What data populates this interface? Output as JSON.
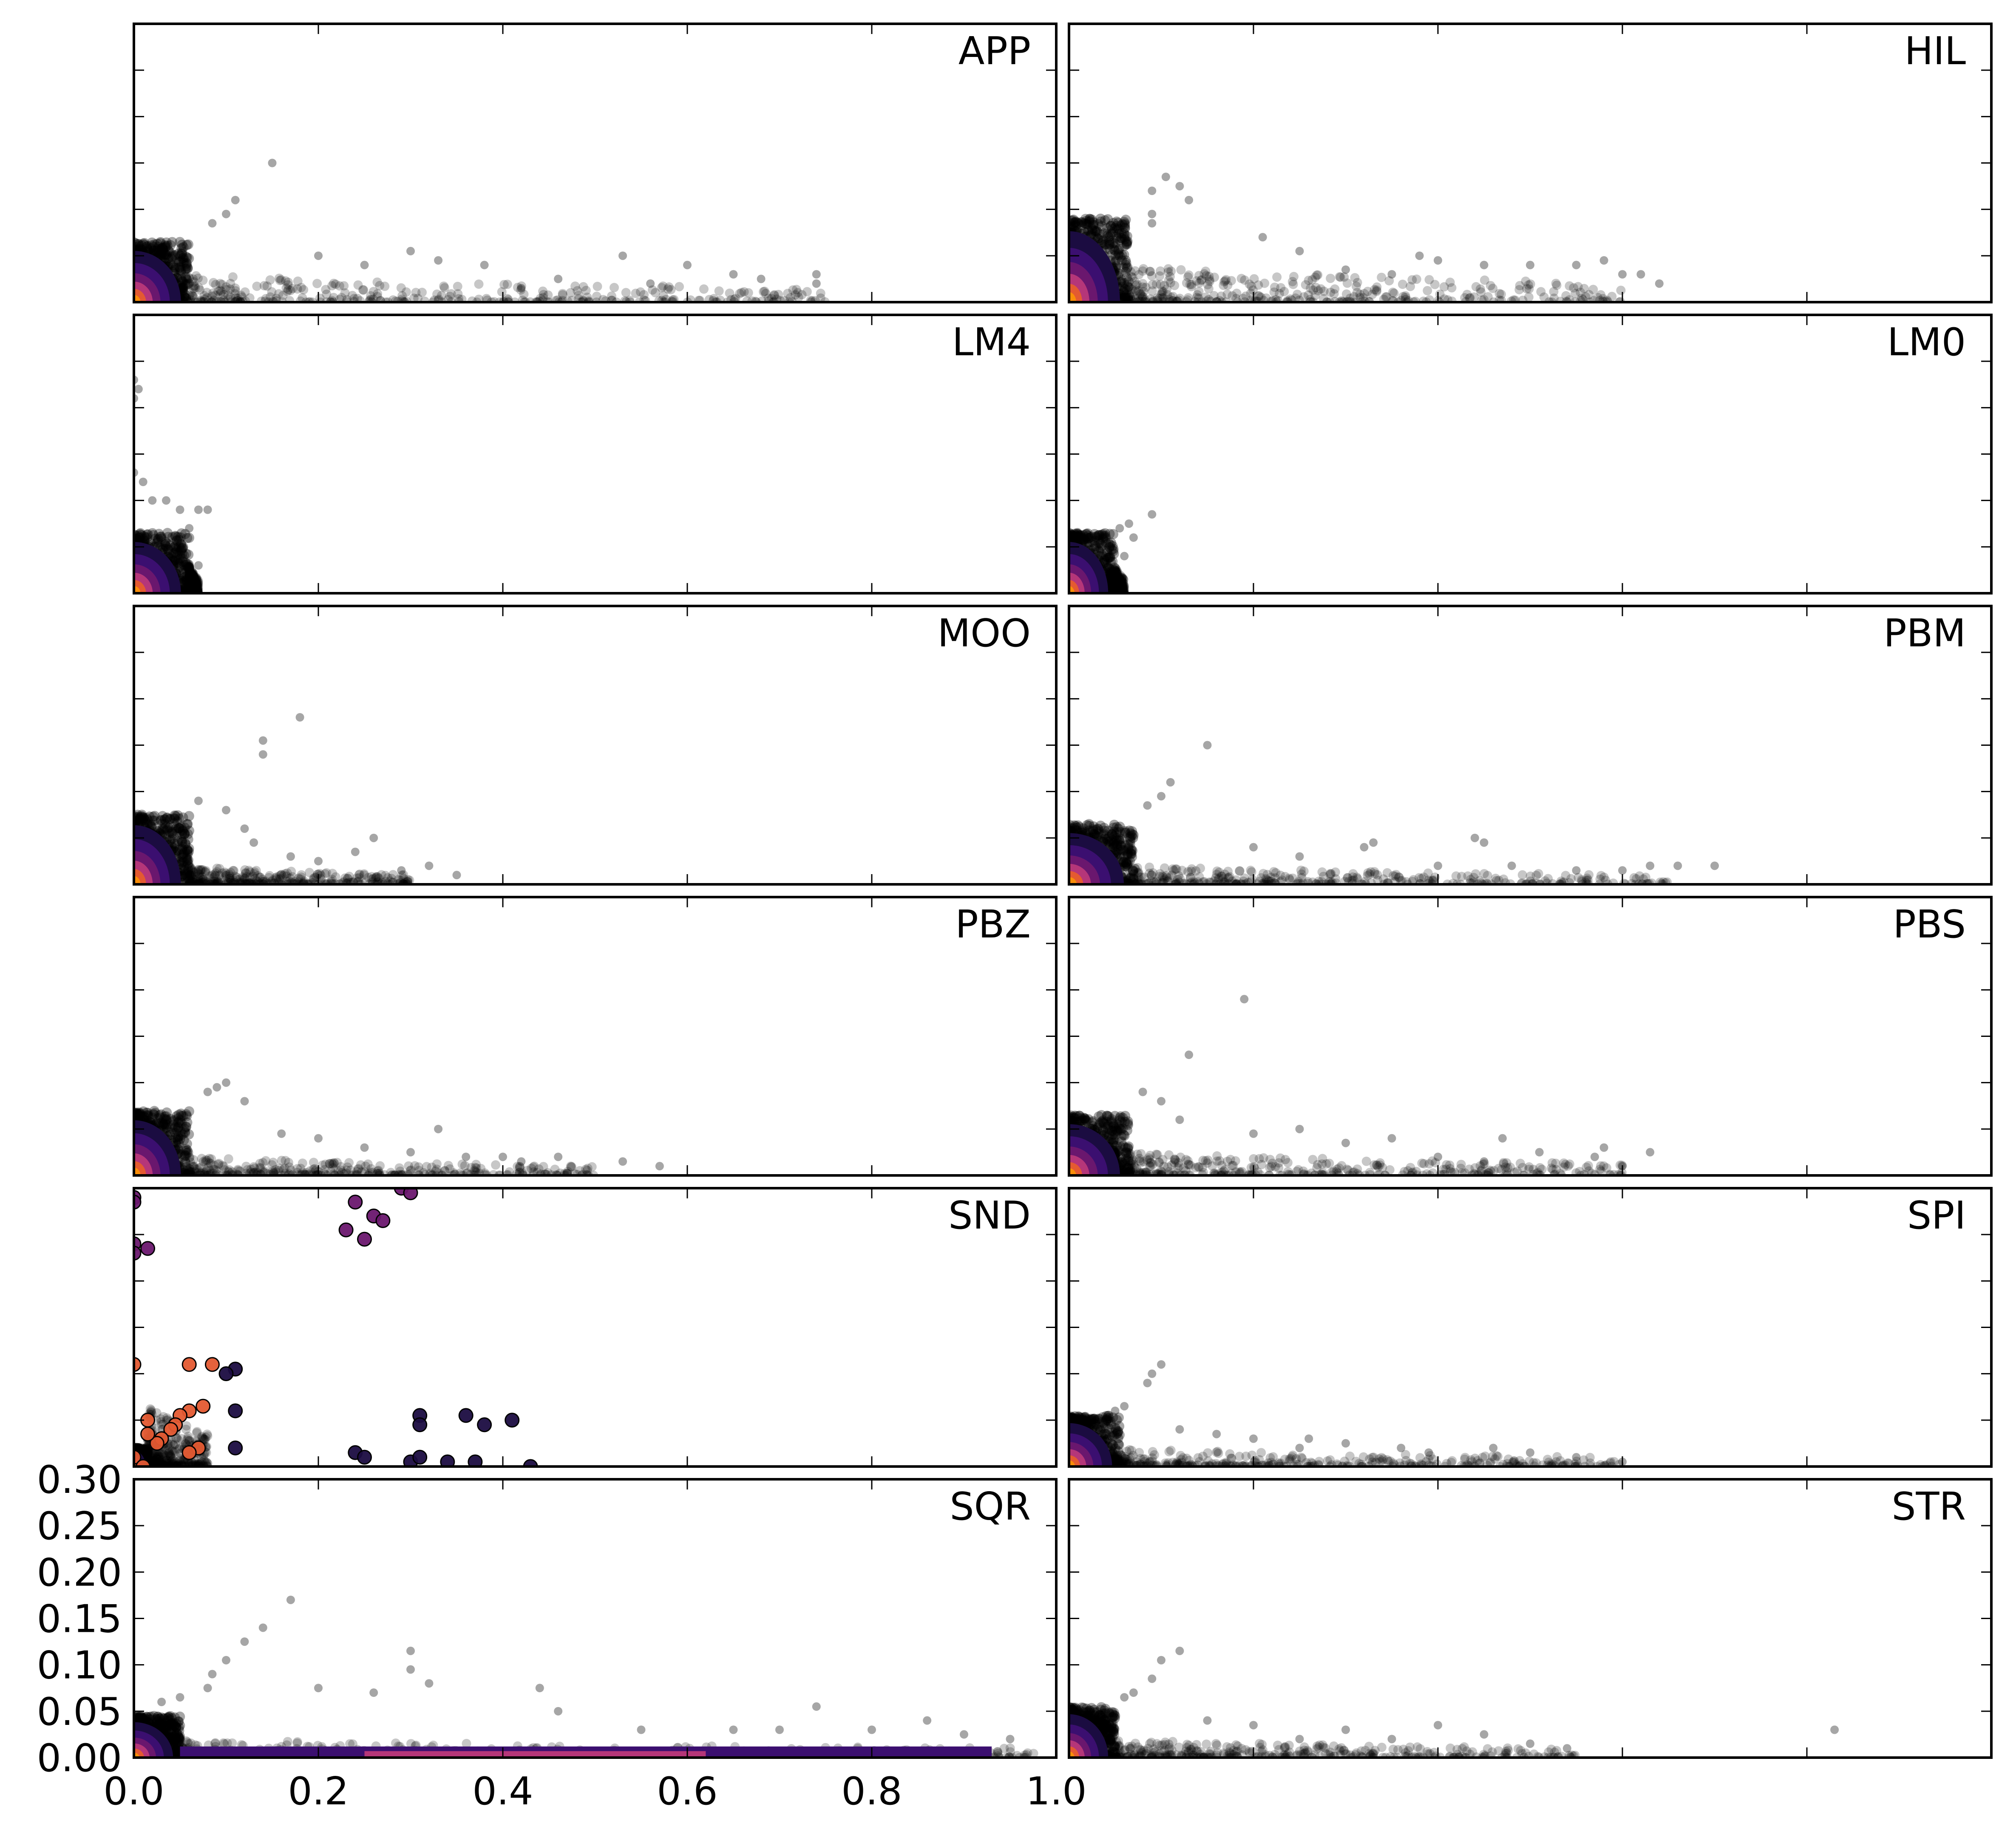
{
  "chart_data": {
    "type": "scatter",
    "layout": {
      "rows": 6,
      "cols": 2
    },
    "xlim": [
      0.0,
      1.0
    ],
    "ylim": [
      0.0,
      0.3
    ],
    "x_ticks": [
      "0.0",
      "0.2",
      "0.4",
      "0.6",
      "0.8",
      "1.0"
    ],
    "y_ticks": [
      "0.00",
      "0.05",
      "0.10",
      "0.15",
      "0.20",
      "0.25",
      "0.30"
    ],
    "x_tick_values": [
      0.0,
      0.2,
      0.4,
      0.6,
      0.8,
      1.0
    ],
    "y_tick_values": [
      0.0,
      0.05,
      0.1,
      0.15,
      0.2,
      0.25,
      0.3
    ],
    "density_colormap": "inferno",
    "colors": {
      "points": "#000000",
      "dense_low": "#3b0f70",
      "dense_mid": "#b53679",
      "dense_high": "#f1813d"
    },
    "panels": [
      {
        "label": "APP",
        "outliers": [
          [
            0.15,
            0.15
          ],
          [
            0.11,
            0.11
          ],
          [
            0.1,
            0.095
          ],
          [
            0.085,
            0.085
          ],
          [
            0.3,
            0.055
          ],
          [
            0.33,
            0.045
          ],
          [
            0.38,
            0.04
          ],
          [
            0.46,
            0.025
          ],
          [
            0.53,
            0.05
          ],
          [
            0.6,
            0.04
          ],
          [
            0.65,
            0.03
          ],
          [
            0.68,
            0.025
          ],
          [
            0.74,
            0.03
          ],
          [
            0.74,
            0.02
          ],
          [
            0.25,
            0.04
          ],
          [
            0.2,
            0.05
          ],
          [
            0.42,
            0.015
          ],
          [
            0.56,
            0.02
          ]
        ],
        "blob_x": 0.06,
        "blob_y": 0.065,
        "tail_x": 0.75,
        "tail_y": 0.03
      },
      {
        "label": "HIL",
        "outliers": [
          [
            0.105,
            0.135
          ],
          [
            0.12,
            0.125
          ],
          [
            0.09,
            0.12
          ],
          [
            0.13,
            0.11
          ],
          [
            0.09,
            0.095
          ],
          [
            0.09,
            0.085
          ],
          [
            0.21,
            0.07
          ],
          [
            0.25,
            0.055
          ],
          [
            0.38,
            0.05
          ],
          [
            0.4,
            0.045
          ],
          [
            0.45,
            0.04
          ],
          [
            0.5,
            0.04
          ],
          [
            0.55,
            0.04
          ],
          [
            0.58,
            0.045
          ],
          [
            0.62,
            0.03
          ],
          [
            0.64,
            0.02
          ],
          [
            0.6,
            0.03
          ],
          [
            0.3,
            0.035
          ],
          [
            0.35,
            0.03
          ]
        ],
        "blob_x": 0.065,
        "blob_y": 0.09,
        "tail_x": 0.6,
        "tail_y": 0.04
      },
      {
        "label": "LM4",
        "outliers": [
          [
            0.0,
            0.23
          ],
          [
            0.005,
            0.22
          ],
          [
            0.0,
            0.21
          ],
          [
            0.0,
            0.13
          ],
          [
            0.01,
            0.12
          ],
          [
            0.02,
            0.1
          ],
          [
            0.035,
            0.1
          ],
          [
            0.05,
            0.09
          ],
          [
            0.06,
            0.07
          ],
          [
            0.07,
            0.09
          ],
          [
            0.08,
            0.09
          ],
          [
            0.07,
            0.03
          ]
        ],
        "blob_x": 0.06,
        "blob_y": 0.065,
        "tail_x": 0.07,
        "tail_y": 0.03
      },
      {
        "label": "LM0",
        "outliers": [
          [
            0.09,
            0.085
          ],
          [
            0.065,
            0.075
          ],
          [
            0.07,
            0.06
          ],
          [
            0.055,
            0.07
          ],
          [
            0.06,
            0.04
          ],
          [
            0.05,
            0.025
          ]
        ],
        "blob_x": 0.05,
        "blob_y": 0.065,
        "tail_x": 0.06,
        "tail_y": 0.03
      },
      {
        "label": "MOO",
        "outliers": [
          [
            0.18,
            0.18
          ],
          [
            0.14,
            0.155
          ],
          [
            0.14,
            0.14
          ],
          [
            0.07,
            0.09
          ],
          [
            0.1,
            0.08
          ],
          [
            0.26,
            0.05
          ],
          [
            0.24,
            0.035
          ],
          [
            0.32,
            0.02
          ],
          [
            0.2,
            0.025
          ],
          [
            0.13,
            0.045
          ],
          [
            0.17,
            0.03
          ],
          [
            0.12,
            0.06
          ],
          [
            0.35,
            0.01
          ],
          [
            0.29,
            0.015
          ]
        ],
        "blob_x": 0.06,
        "blob_y": 0.075,
        "tail_x": 0.3,
        "tail_y": 0.02
      },
      {
        "label": "PBM",
        "outliers": [
          [
            0.15,
            0.15
          ],
          [
            0.11,
            0.11
          ],
          [
            0.1,
            0.095
          ],
          [
            0.085,
            0.085
          ],
          [
            0.32,
            0.04
          ],
          [
            0.33,
            0.045
          ],
          [
            0.44,
            0.05
          ],
          [
            0.45,
            0.045
          ],
          [
            0.6,
            0.015
          ],
          [
            0.63,
            0.02
          ],
          [
            0.66,
            0.02
          ],
          [
            0.7,
            0.02
          ],
          [
            0.25,
            0.03
          ],
          [
            0.2,
            0.04
          ],
          [
            0.4,
            0.02
          ],
          [
            0.55,
            0.015
          ],
          [
            0.48,
            0.02
          ]
        ],
        "blob_x": 0.07,
        "blob_y": 0.065,
        "tail_x": 0.65,
        "tail_y": 0.02
      },
      {
        "label": "PBZ",
        "outliers": [
          [
            0.1,
            0.1
          ],
          [
            0.09,
            0.095
          ],
          [
            0.08,
            0.09
          ],
          [
            0.12,
            0.08
          ],
          [
            0.16,
            0.045
          ],
          [
            0.2,
            0.04
          ],
          [
            0.33,
            0.05
          ],
          [
            0.4,
            0.02
          ],
          [
            0.46,
            0.02
          ],
          [
            0.53,
            0.015
          ],
          [
            0.57,
            0.01
          ],
          [
            0.25,
            0.03
          ],
          [
            0.3,
            0.025
          ],
          [
            0.36,
            0.02
          ],
          [
            0.42,
            0.015
          ]
        ],
        "blob_x": 0.06,
        "blob_y": 0.07,
        "tail_x": 0.5,
        "tail_y": 0.02
      },
      {
        "label": "PBS",
        "outliers": [
          [
            0.19,
            0.19
          ],
          [
            0.13,
            0.13
          ],
          [
            0.08,
            0.09
          ],
          [
            0.1,
            0.08
          ],
          [
            0.12,
            0.06
          ],
          [
            0.2,
            0.045
          ],
          [
            0.3,
            0.035
          ],
          [
            0.35,
            0.04
          ],
          [
            0.4,
            0.02
          ],
          [
            0.47,
            0.04
          ],
          [
            0.51,
            0.025
          ],
          [
            0.57,
            0.02
          ],
          [
            0.58,
            0.03
          ],
          [
            0.63,
            0.025
          ],
          [
            0.25,
            0.05
          ],
          [
            0.45,
            0.015
          ],
          [
            0.6,
            0.01
          ]
        ],
        "blob_x": 0.065,
        "blob_y": 0.065,
        "tail_x": 0.6,
        "tail_y": 0.025
      },
      {
        "label": "SND",
        "outliers": [
          [
            0.0,
            0.29
          ],
          [
            0.0,
            0.285
          ],
          [
            0.29,
            0.3
          ],
          [
            0.3,
            0.295
          ],
          [
            0.24,
            0.285
          ],
          [
            0.26,
            0.27
          ],
          [
            0.27,
            0.265
          ],
          [
            0.23,
            0.255
          ],
          [
            0.25,
            0.245
          ],
          [
            0.0,
            0.24
          ],
          [
            0.0,
            0.23
          ],
          [
            0.015,
            0.235
          ],
          [
            0.0,
            0.11
          ],
          [
            0.06,
            0.11
          ],
          [
            0.085,
            0.11
          ],
          [
            0.11,
            0.105
          ],
          [
            0.1,
            0.1
          ],
          [
            0.075,
            0.065
          ],
          [
            0.06,
            0.06
          ],
          [
            0.05,
            0.055
          ],
          [
            0.045,
            0.045
          ],
          [
            0.04,
            0.04
          ],
          [
            0.03,
            0.03
          ],
          [
            0.025,
            0.025
          ],
          [
            0.015,
            0.05
          ],
          [
            0.015,
            0.035
          ],
          [
            0.07,
            0.02
          ],
          [
            0.06,
            0.015
          ],
          [
            0.11,
            0.06
          ],
          [
            0.11,
            0.02
          ],
          [
            0.31,
            0.055
          ],
          [
            0.31,
            0.045
          ],
          [
            0.36,
            0.055
          ],
          [
            0.38,
            0.045
          ],
          [
            0.41,
            0.05
          ],
          [
            0.24,
            0.015
          ],
          [
            0.25,
            0.01
          ],
          [
            0.3,
            0.005
          ],
          [
            0.31,
            0.01
          ],
          [
            0.34,
            0.005
          ],
          [
            0.37,
            0.005
          ],
          [
            0.43,
            0.0
          ],
          [
            0.0,
            0.01
          ],
          [
            0.01,
            0.0
          ]
        ],
        "blob_x": 0.015,
        "blob_y": 0.02,
        "tail_x": 0.08,
        "tail_y": 0.07
      },
      {
        "label": "SPI",
        "outliers": [
          [
            0.1,
            0.11
          ],
          [
            0.09,
            0.1
          ],
          [
            0.085,
            0.09
          ],
          [
            0.06,
            0.065
          ],
          [
            0.05,
            0.06
          ],
          [
            0.12,
            0.04
          ],
          [
            0.16,
            0.035
          ],
          [
            0.2,
            0.03
          ],
          [
            0.26,
            0.03
          ],
          [
            0.3,
            0.025
          ],
          [
            0.36,
            0.02
          ],
          [
            0.39,
            0.015
          ],
          [
            0.46,
            0.02
          ],
          [
            0.5,
            0.015
          ],
          [
            0.55,
            0.01
          ],
          [
            0.6,
            0.005
          ],
          [
            0.25,
            0.02
          ]
        ],
        "blob_x": 0.055,
        "blob_y": 0.055,
        "tail_x": 0.6,
        "tail_y": 0.02
      },
      {
        "label": "SQR",
        "outliers": [
          [
            0.17,
            0.17
          ],
          [
            0.14,
            0.14
          ],
          [
            0.12,
            0.125
          ],
          [
            0.1,
            0.105
          ],
          [
            0.085,
            0.09
          ],
          [
            0.3,
            0.115
          ],
          [
            0.3,
            0.095
          ],
          [
            0.32,
            0.08
          ],
          [
            0.2,
            0.075
          ],
          [
            0.26,
            0.07
          ],
          [
            0.44,
            0.075
          ],
          [
            0.46,
            0.05
          ],
          [
            0.74,
            0.055
          ],
          [
            0.86,
            0.04
          ],
          [
            0.08,
            0.075
          ],
          [
            0.05,
            0.065
          ],
          [
            0.03,
            0.06
          ],
          [
            0.55,
            0.03
          ],
          [
            0.65,
            0.03
          ],
          [
            0.7,
            0.03
          ],
          [
            0.8,
            0.03
          ],
          [
            0.9,
            0.025
          ],
          [
            0.95,
            0.02
          ]
        ],
        "blob_x": 0.05,
        "blob_y": 0.045,
        "tail_x": 0.98,
        "tail_y": 0.02
      },
      {
        "label": "STR",
        "outliers": [
          [
            0.12,
            0.115
          ],
          [
            0.1,
            0.105
          ],
          [
            0.09,
            0.085
          ],
          [
            0.07,
            0.07
          ],
          [
            0.06,
            0.065
          ],
          [
            0.15,
            0.04
          ],
          [
            0.2,
            0.035
          ],
          [
            0.3,
            0.03
          ],
          [
            0.35,
            0.02
          ],
          [
            0.4,
            0.035
          ],
          [
            0.45,
            0.025
          ],
          [
            0.5,
            0.015
          ],
          [
            0.54,
            0.01
          ],
          [
            0.83,
            0.03
          ],
          [
            0.25,
            0.02
          ]
        ],
        "blob_x": 0.05,
        "blob_y": 0.055,
        "tail_x": 0.55,
        "tail_y": 0.02
      }
    ]
  }
}
